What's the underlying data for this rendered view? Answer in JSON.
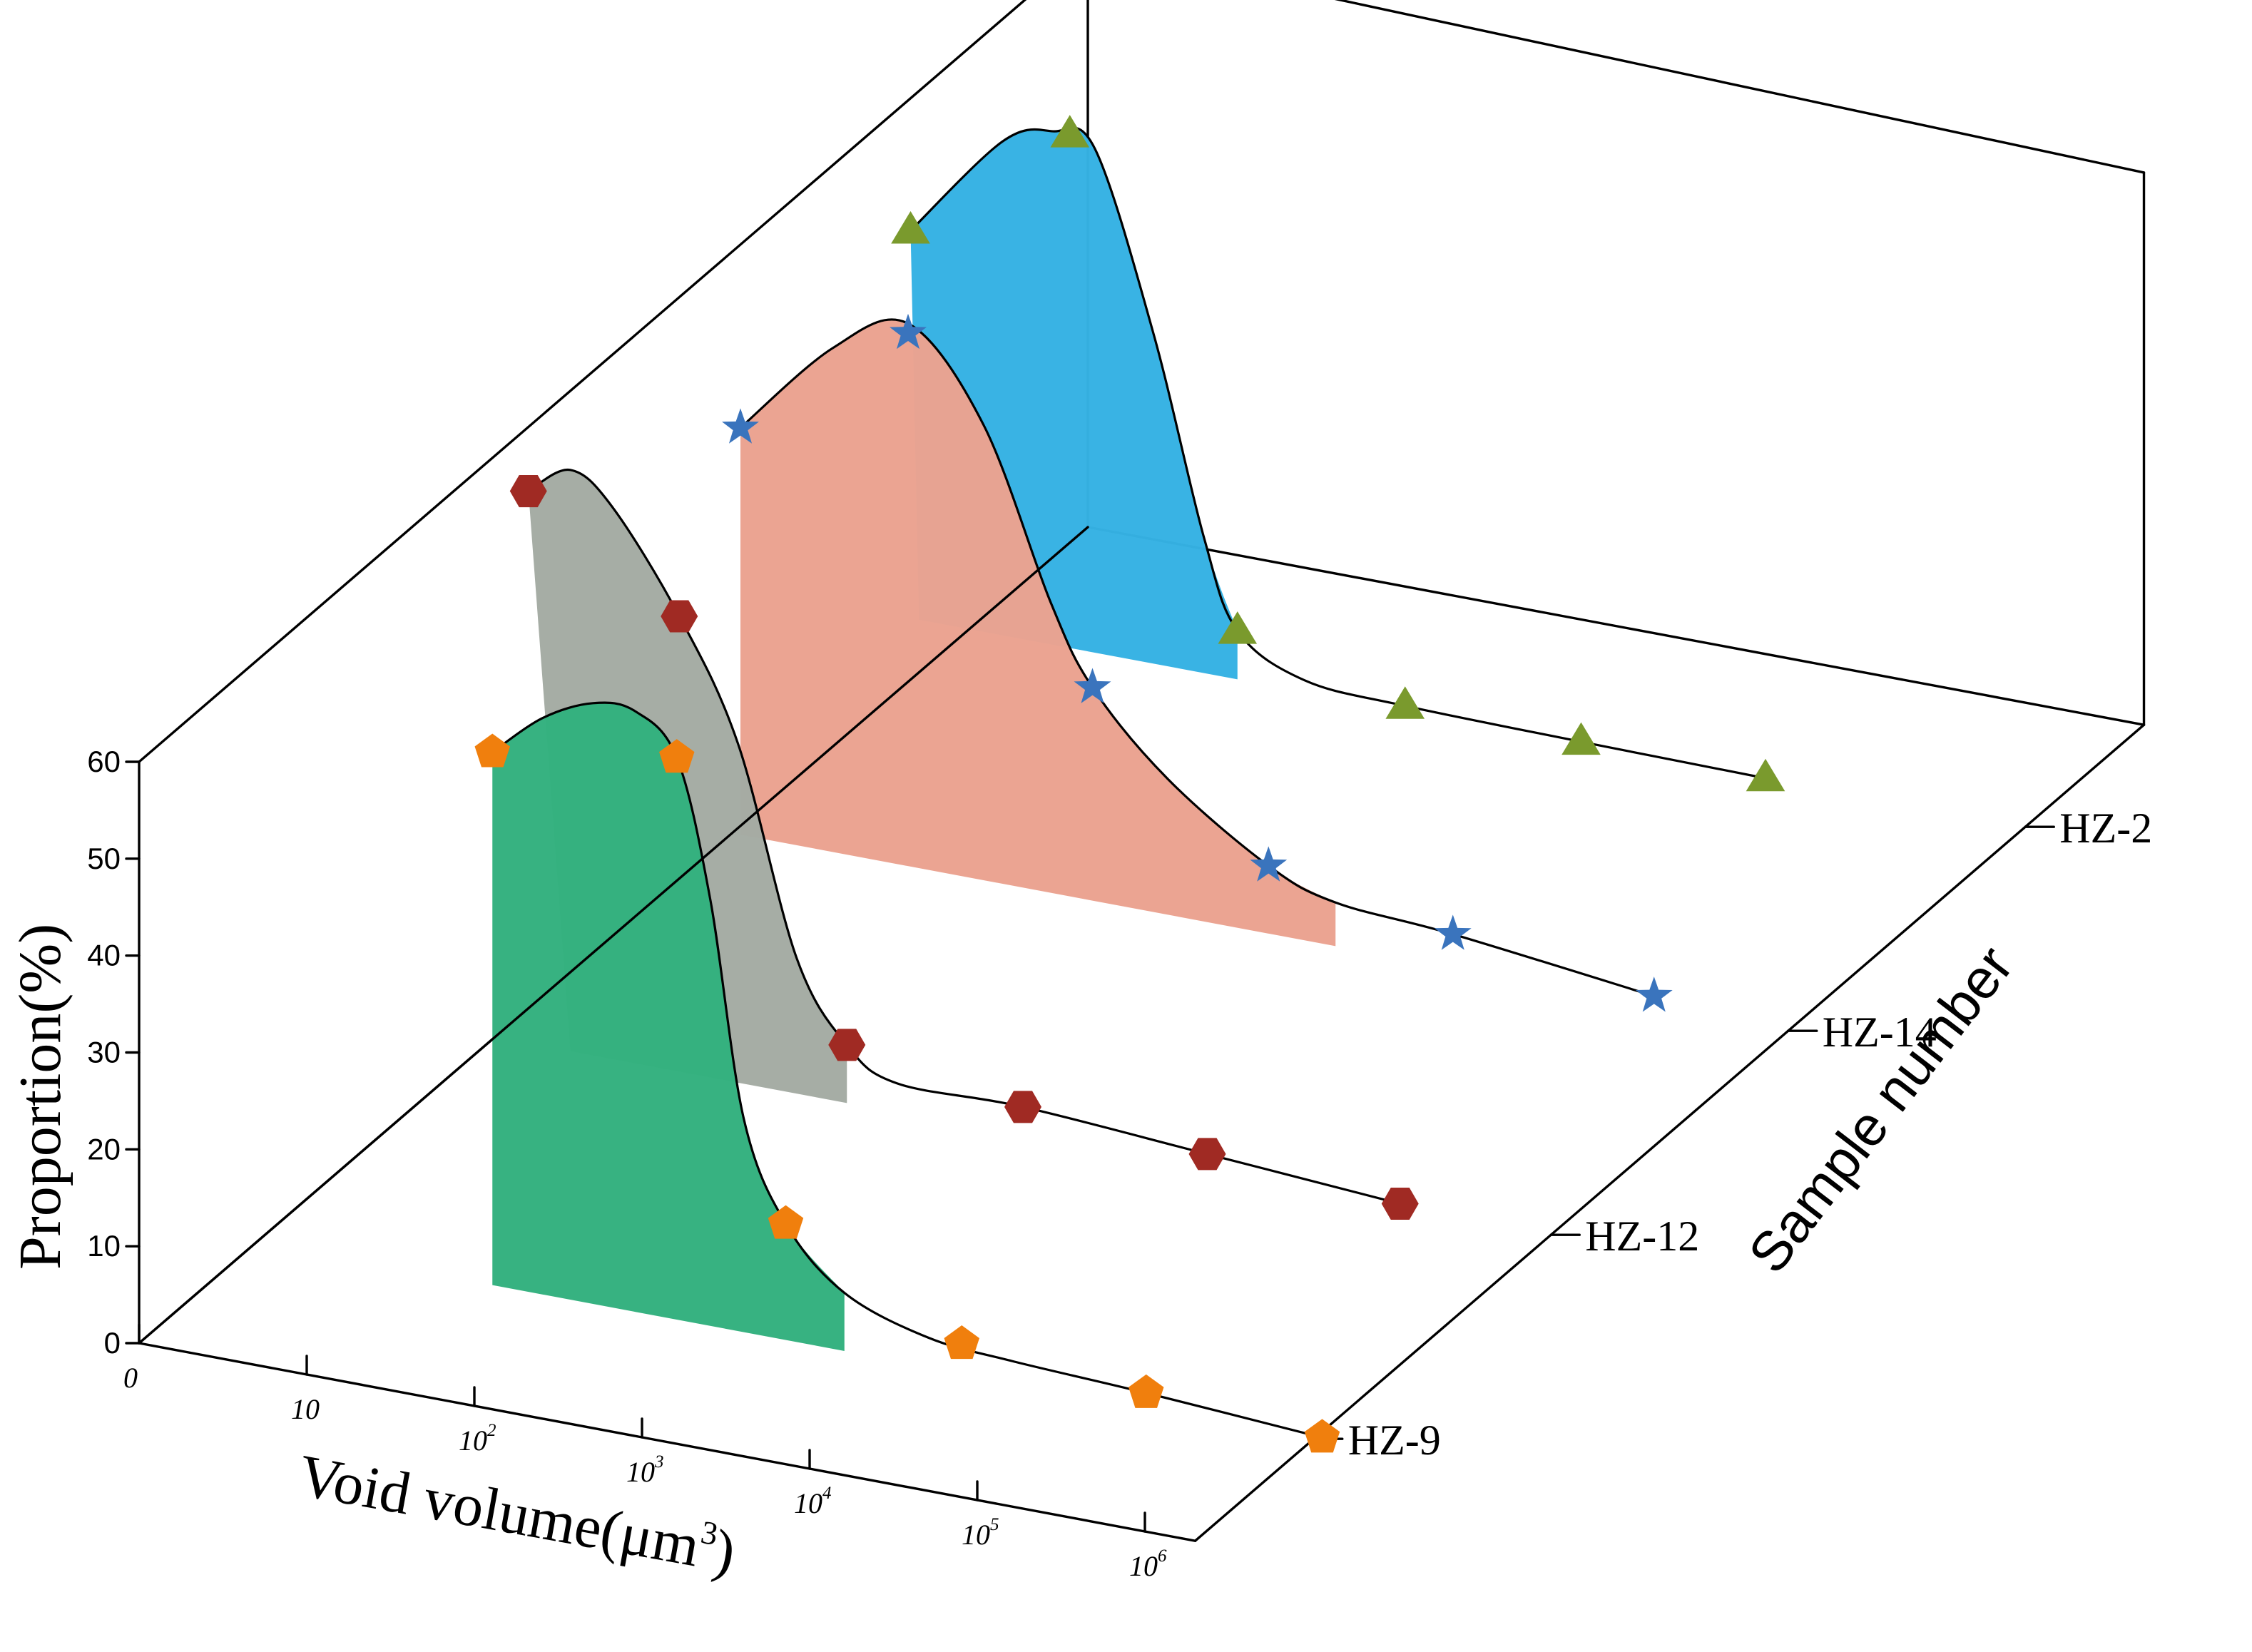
{
  "chart_data": {
    "type": "area",
    "projection": "3d-ridge",
    "ylabel": "Proportion(%)",
    "xlabel_prefix": "Void volume(",
    "xlabel_unit": "μm",
    "xlabel_sup": "3",
    "xlabel_suffix": ")",
    "zlabel": "Sample number",
    "ylim": [
      0,
      60
    ],
    "yticks": [
      "0",
      "10",
      "20",
      "30",
      "40",
      "50",
      "60"
    ],
    "xtick_log": [
      0,
      1,
      2,
      3,
      4,
      5,
      6
    ],
    "xticks": [
      {
        "base": "0",
        "sup": ""
      },
      {
        "base": "10",
        "sup": ""
      },
      {
        "base": "10",
        "sup": "2"
      },
      {
        "base": "10",
        "sup": "3"
      },
      {
        "base": "10",
        "sup": "4"
      },
      {
        "base": "10",
        "sup": "5"
      },
      {
        "base": "10",
        "sup": "6"
      }
    ],
    "samples": [
      "HZ-9",
      "HZ-12",
      "HZ-14",
      "HZ-2"
    ],
    "series": [
      {
        "name": "HZ-9",
        "fill": "#33b07e",
        "marker": "pentagon",
        "marker_color": "#f07f0d",
        "x": [
          1.4,
          2.5,
          3.15,
          4.2,
          5.3,
          6.35
        ],
        "values": [
          55,
          58,
          12,
          3,
          1.5,
          0.3
        ],
        "curve_x": [
          1.4,
          1.7,
          2.0,
          2.25,
          2.5,
          2.7,
          2.9,
          3.15,
          3.5,
          4.0,
          4.5,
          5.3,
          6.35
        ],
        "curve_y": [
          55,
          59.5,
          62,
          62,
          58,
          44,
          22,
          12,
          6,
          3,
          2.2,
          1.5,
          0.3
        ]
      },
      {
        "name": "HZ-12",
        "fill": "#a4aba3",
        "marker": "hexagon",
        "marker_color": "#a02a23",
        "x": [
          0.2,
          1.1,
          2.1,
          3.15,
          4.25,
          5.4
        ],
        "values": [
          57,
          47,
          6,
          3,
          1.7,
          0.3
        ],
        "curve_x": [
          0.2,
          0.45,
          0.7,
          1.1,
          1.45,
          1.8,
          2.1,
          2.4,
          3.15,
          4.25,
          5.4
        ],
        "curve_y": [
          57,
          60,
          57,
          47,
          35,
          14,
          6,
          3,
          3,
          1.7,
          0.3
        ],
        "fill_x_start": 0.45
      },
      {
        "name": "HZ-14",
        "fill": "#eba290",
        "marker": "star",
        "marker_color": "#3a74bd",
        "x": [
          0.05,
          1.05,
          2.15,
          3.2,
          4.3,
          5.5
        ],
        "values": [
          42,
          55,
          22,
          7,
          3.5,
          1
        ],
        "curve_x": [
          0.05,
          0.6,
          1.05,
          1.5,
          1.9,
          2.15,
          2.6,
          3.2,
          3.6,
          4.3,
          5.5
        ],
        "curve_y": [
          42,
          52,
          56,
          47,
          30,
          22,
          14,
          7,
          4.5,
          3.5,
          1
        ],
        "fill_x_start": 0.05
      },
      {
        "name": "HZ-2",
        "fill": "#35b1e3",
        "marker": "triangle",
        "marker_color": "#7a9a2d",
        "x": [
          -0.35,
          0.6,
          1.6,
          2.6,
          3.65,
          4.75
        ],
        "values": [
          40,
          53,
          5,
          0.5,
          0.2,
          0
        ],
        "curve_x": [
          -0.35,
          0.2,
          0.5,
          0.75,
          1.1,
          1.4,
          1.6,
          2.0,
          2.6,
          3.65,
          4.75
        ],
        "curve_y": [
          40,
          51,
          53,
          52,
          34,
          14,
          5,
          1.2,
          0.5,
          0.2,
          0
        ],
        "fill_x_start": -0.3
      }
    ]
  }
}
